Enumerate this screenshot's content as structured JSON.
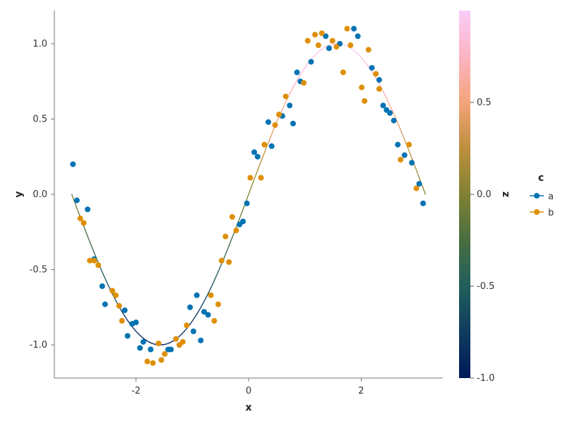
{
  "chart_data": {
    "type": "scatter",
    "xlabel": "x",
    "ylabel": "y",
    "xlim": [
      -3.45,
      3.45
    ],
    "ylim": [
      -1.22,
      1.22
    ],
    "x_ticks": [
      -2,
      0,
      2
    ],
    "x_tick_labels": [
      "-2",
      "0",
      "2"
    ],
    "y_ticks": [
      -1.0,
      -0.5,
      0.0,
      0.5,
      1.0
    ],
    "y_tick_labels": [
      "-1.0",
      "-0.5",
      "0.0",
      "0.5",
      "1.0"
    ],
    "grid": false,
    "legend": {
      "title": "c",
      "placement": "right",
      "entries": [
        {
          "label": "a",
          "color": "#0173b2"
        },
        {
          "label": "b",
          "color": "#de8f05"
        }
      ]
    },
    "colorbar": {
      "title": "z",
      "range": [
        -1.0,
        1.0
      ],
      "ticks": [
        -1.0,
        -0.5,
        0.0,
        0.5
      ],
      "tick_labels": [
        "-1.0",
        "-0.5",
        "0.0",
        "0.5"
      ],
      "colormap": "batlow-like",
      "stops": [
        "#001959",
        "#0f3c5f",
        "#215e5c",
        "#496e40",
        "#808133",
        "#bd8f3d",
        "#f3a47a",
        "#fdb4c3",
        "#f9ccf9"
      ]
    },
    "line": {
      "name": "sin(x)",
      "color_encoding": "z",
      "x": [
        -3.1416,
        -2.9,
        -2.6,
        -2.3,
        -2.0,
        -1.7,
        -1.5708,
        -1.4,
        -1.1,
        -0.8,
        -0.5,
        -0.2,
        0.0,
        0.2,
        0.5,
        0.8,
        1.1,
        1.4,
        1.5708,
        1.8,
        2.1,
        2.4,
        2.7,
        2.95,
        3.1416
      ],
      "y": [
        0.0,
        -0.239,
        -0.516,
        -0.746,
        -0.909,
        -0.992,
        -1.0,
        -0.985,
        -0.891,
        -0.717,
        -0.479,
        -0.199,
        0.0,
        0.199,
        0.479,
        0.717,
        0.891,
        0.985,
        1.0,
        0.974,
        0.863,
        0.675,
        0.427,
        0.19,
        0.0
      ]
    },
    "series": [
      {
        "name": "a",
        "color": "#0173b2",
        "points": [
          [
            -3.12,
            0.2
          ],
          [
            -3.05,
            -0.04
          ],
          [
            -2.86,
            -0.1
          ],
          [
            -2.74,
            -0.43
          ],
          [
            -2.6,
            -0.61
          ],
          [
            -2.55,
            -0.73
          ],
          [
            -2.2,
            -0.77
          ],
          [
            -2.15,
            -0.94
          ],
          [
            -2.07,
            -0.86
          ],
          [
            -2.0,
            -0.85
          ],
          [
            -1.93,
            -1.02
          ],
          [
            -1.87,
            -0.98
          ],
          [
            -1.74,
            -1.03
          ],
          [
            -1.43,
            -1.03
          ],
          [
            -1.38,
            -1.03
          ],
          [
            -1.04,
            -0.75
          ],
          [
            -0.98,
            -0.91
          ],
          [
            -0.92,
            -0.67
          ],
          [
            -0.85,
            -0.97
          ],
          [
            -0.79,
            -0.78
          ],
          [
            -0.72,
            -0.8
          ],
          [
            -0.16,
            -0.2
          ],
          [
            -0.1,
            -0.18
          ],
          [
            -0.03,
            -0.06
          ],
          [
            0.1,
            0.28
          ],
          [
            0.16,
            0.25
          ],
          [
            0.35,
            0.48
          ],
          [
            0.41,
            0.32
          ],
          [
            0.6,
            0.52
          ],
          [
            0.73,
            0.59
          ],
          [
            0.79,
            0.47
          ],
          [
            0.86,
            0.81
          ],
          [
            0.92,
            0.75
          ],
          [
            1.11,
            0.88
          ],
          [
            1.37,
            1.05
          ],
          [
            1.43,
            0.97
          ],
          [
            1.62,
            1.0
          ],
          [
            1.87,
            1.1
          ],
          [
            1.94,
            1.05
          ],
          [
            2.19,
            0.84
          ],
          [
            2.32,
            0.76
          ],
          [
            2.39,
            0.59
          ],
          [
            2.45,
            0.56
          ],
          [
            2.51,
            0.54
          ],
          [
            2.58,
            0.49
          ],
          [
            2.65,
            0.33
          ],
          [
            2.77,
            0.26
          ],
          [
            2.9,
            0.21
          ],
          [
            3.03,
            0.07
          ],
          [
            3.1,
            -0.06
          ]
        ]
      },
      {
        "name": "b",
        "color": "#de8f05",
        "points": [
          [
            -2.99,
            -0.16
          ],
          [
            -2.93,
            -0.19
          ],
          [
            -2.82,
            -0.44
          ],
          [
            -2.74,
            -0.44
          ],
          [
            -2.67,
            -0.47
          ],
          [
            -2.42,
            -0.64
          ],
          [
            -2.36,
            -0.67
          ],
          [
            -2.3,
            -0.74
          ],
          [
            -2.25,
            -0.84
          ],
          [
            -1.8,
            -1.11
          ],
          [
            -1.7,
            -1.12
          ],
          [
            -1.6,
            -0.99
          ],
          [
            -1.55,
            -1.1
          ],
          [
            -1.49,
            -1.06
          ],
          [
            -1.29,
            -0.96
          ],
          [
            -1.23,
            -1.0
          ],
          [
            -1.17,
            -0.98
          ],
          [
            -1.1,
            -0.87
          ],
          [
            -0.67,
            -0.67
          ],
          [
            -0.61,
            -0.84
          ],
          [
            -0.54,
            -0.73
          ],
          [
            -0.48,
            -0.44
          ],
          [
            -0.41,
            -0.28
          ],
          [
            -0.35,
            -0.45
          ],
          [
            -0.29,
            -0.15
          ],
          [
            -0.22,
            -0.24
          ],
          [
            0.03,
            0.11
          ],
          [
            0.22,
            0.11
          ],
          [
            0.28,
            0.33
          ],
          [
            0.47,
            0.46
          ],
          [
            0.54,
            0.53
          ],
          [
            0.66,
            0.65
          ],
          [
            0.98,
            0.74
          ],
          [
            1.05,
            1.02
          ],
          [
            1.18,
            1.06
          ],
          [
            1.24,
            0.99
          ],
          [
            1.3,
            1.07
          ],
          [
            1.49,
            1.02
          ],
          [
            1.56,
            0.98
          ],
          [
            1.68,
            0.81
          ],
          [
            1.75,
            1.1
          ],
          [
            1.81,
            0.99
          ],
          [
            2.01,
            0.71
          ],
          [
            2.06,
            0.62
          ],
          [
            2.13,
            0.96
          ],
          [
            2.26,
            0.8
          ],
          [
            2.32,
            0.7
          ],
          [
            2.7,
            0.23
          ],
          [
            2.85,
            0.33
          ],
          [
            2.98,
            0.04
          ]
        ]
      }
    ]
  }
}
